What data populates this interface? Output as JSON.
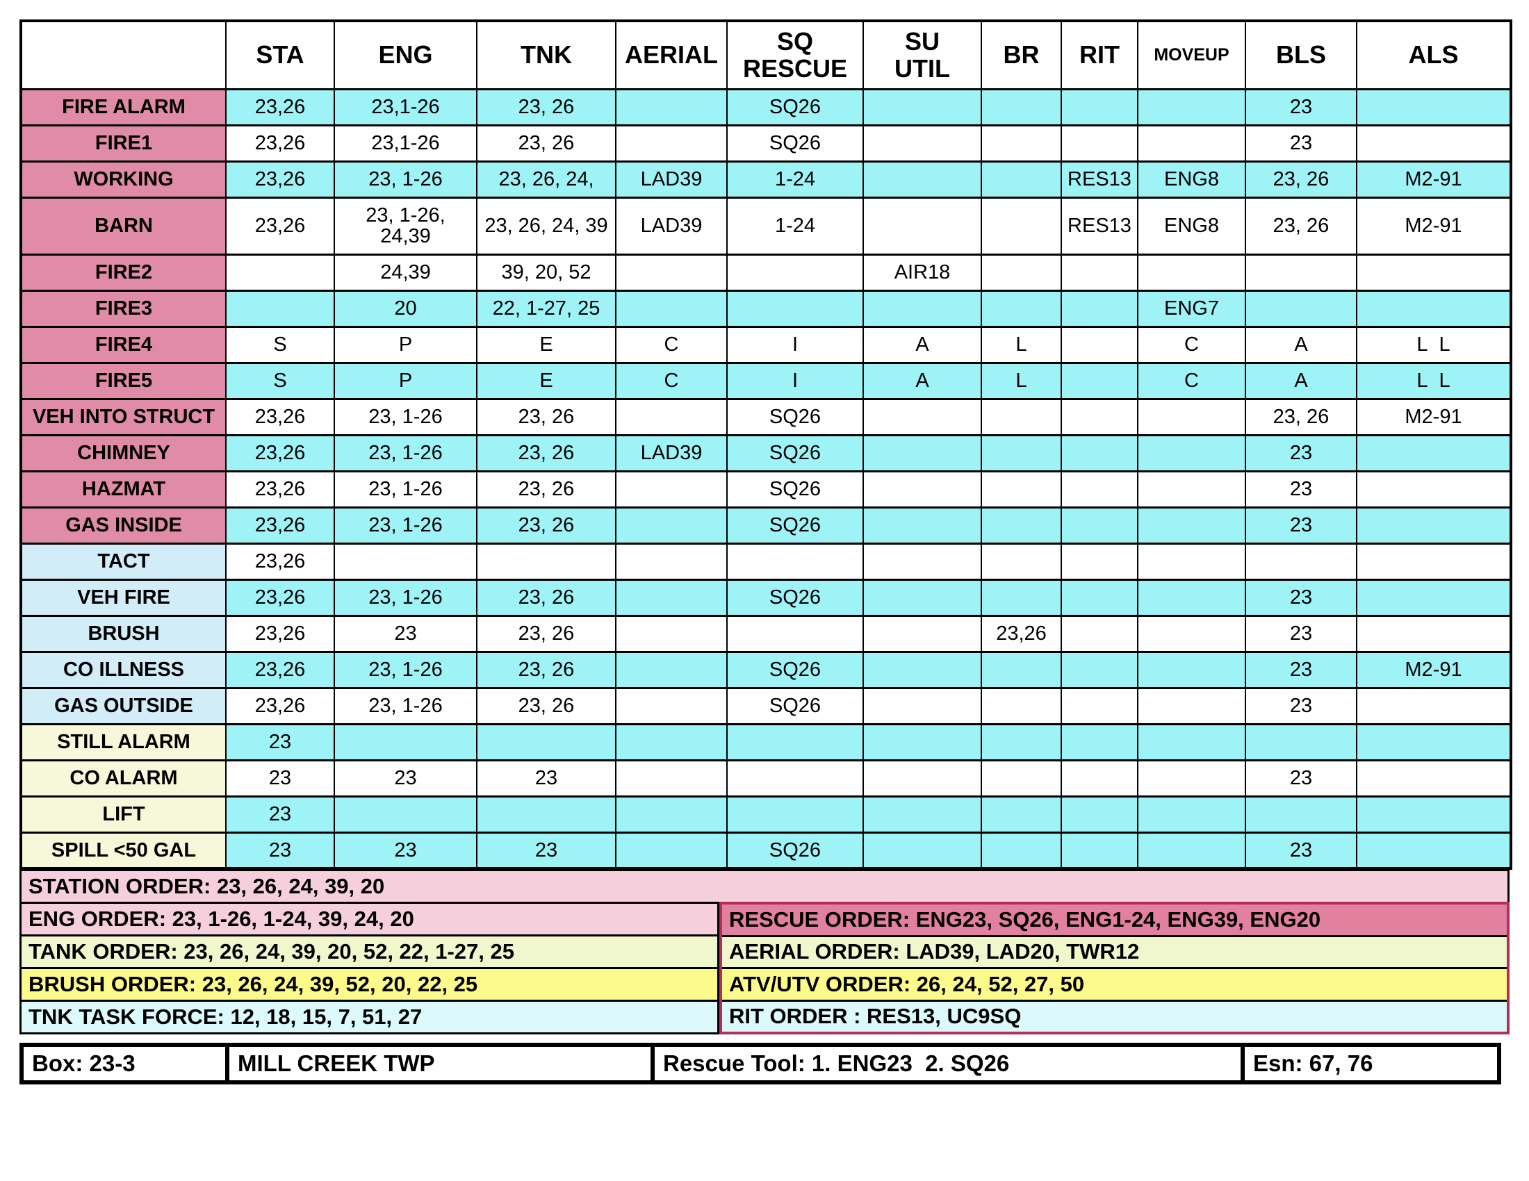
{
  "palette": {
    "cyan": "#9ef3f6",
    "label_pink": "#e08ca8",
    "label_blue": "#d2edf7",
    "label_cream": "#f7f7da",
    "order_pink": "#f5d0dc",
    "order_rose": "#e2809f",
    "order_green": "#f0f7cc",
    "order_yellow": "#fdfa8c",
    "order_cyan": "#dcf9fc",
    "crimson": "#b03058"
  },
  "columns": [
    {
      "id": "row-label",
      "label": ""
    },
    {
      "id": "sta",
      "label": "STA"
    },
    {
      "id": "eng",
      "label": "ENG"
    },
    {
      "id": "tnk",
      "label": "TNK"
    },
    {
      "id": "aerial",
      "label": "AERIAL"
    },
    {
      "id": "sq-rescue",
      "label": "SQ\nRESCUE"
    },
    {
      "id": "su-util",
      "label": "SU\nUTIL"
    },
    {
      "id": "br",
      "label": "BR"
    },
    {
      "id": "rit",
      "label": "RIT"
    },
    {
      "id": "moveup",
      "label": "MOVEUP",
      "small": true
    },
    {
      "id": "bls",
      "label": "BLS"
    },
    {
      "id": "als",
      "label": "ALS"
    }
  ],
  "rows": [
    {
      "label": "FIRE ALARM",
      "label_bg": "pink",
      "shade": "cyan",
      "cells": [
        "23,26",
        "23,1-26",
        "23, 26",
        "",
        "SQ26",
        "",
        "",
        "",
        "",
        "23",
        ""
      ]
    },
    {
      "label": "FIRE1",
      "label_bg": "pink",
      "shade": "white",
      "cells": [
        "23,26",
        "23,1-26",
        "23, 26",
        "",
        "SQ26",
        "",
        "",
        "",
        "",
        "23",
        ""
      ]
    },
    {
      "label": "WORKING",
      "label_bg": "pink",
      "shade": "cyan",
      "cells": [
        "23,26",
        "23, 1-26",
        "23, 26, 24,",
        "LAD39",
        "1-24",
        "",
        "",
        "RES13",
        "ENG8",
        "23, 26",
        "M2-91"
      ]
    },
    {
      "label": "BARN",
      "label_bg": "pink",
      "shade": "white",
      "tall": true,
      "cells": [
        "23,26",
        "23, 1-26,\n24,39",
        "23, 26, 24, 39",
        "LAD39",
        "1-24",
        "",
        "",
        "RES13",
        "ENG8",
        "23, 26",
        "M2-91"
      ]
    },
    {
      "label": "FIRE2",
      "label_bg": "pink",
      "shade": "white",
      "cells": [
        "",
        "24,39",
        "39, 20, 52",
        "",
        "",
        "AIR18",
        "",
        "",
        "",
        "",
        ""
      ]
    },
    {
      "label": "FIRE3",
      "label_bg": "pink",
      "shade": "cyan",
      "cells": [
        "",
        "20",
        "22, 1-27, 25",
        "",
        "",
        "",
        "",
        "",
        "ENG7",
        "",
        ""
      ]
    },
    {
      "label": "FIRE4",
      "label_bg": "pink",
      "shade": "white",
      "cells": [
        "S",
        "P",
        "E",
        "C",
        "I",
        "A",
        "L",
        "",
        "C",
        "A",
        "L  L"
      ]
    },
    {
      "label": "FIRE5",
      "label_bg": "pink",
      "shade": "cyan",
      "cells": [
        "S",
        "P",
        "E",
        "C",
        "I",
        "A",
        "L",
        "",
        "C",
        "A",
        "L  L"
      ]
    },
    {
      "label": "VEH INTO STRUCT",
      "label_bg": "pink",
      "shade": "white",
      "cells": [
        "23,26",
        "23, 1-26",
        "23, 26",
        "",
        "SQ26",
        "",
        "",
        "",
        "",
        "23, 26",
        "M2-91"
      ]
    },
    {
      "label": "CHIMNEY",
      "label_bg": "pink",
      "shade": "cyan",
      "cells": [
        "23,26",
        "23, 1-26",
        "23, 26",
        "LAD39",
        "SQ26",
        "",
        "",
        "",
        "",
        "23",
        ""
      ]
    },
    {
      "label": "HAZMAT",
      "label_bg": "pink",
      "shade": "white",
      "cells": [
        "23,26",
        "23, 1-26",
        "23, 26",
        "",
        "SQ26",
        "",
        "",
        "",
        "",
        "23",
        ""
      ]
    },
    {
      "label": "GAS INSIDE",
      "label_bg": "pink",
      "shade": "cyan",
      "cells": [
        "23,26",
        "23, 1-26",
        "23, 26",
        "",
        "SQ26",
        "",
        "",
        "",
        "",
        "23",
        ""
      ]
    },
    {
      "label": "TACT",
      "label_bg": "blue",
      "shade": "white",
      "cells": [
        "23,26",
        "",
        "",
        "",
        "",
        "",
        "",
        "",
        "",
        "",
        ""
      ]
    },
    {
      "label": "VEH FIRE",
      "label_bg": "blue",
      "shade": "cyan",
      "cells": [
        "23,26",
        "23, 1-26",
        "23, 26",
        "",
        "SQ26",
        "",
        "",
        "",
        "",
        "23",
        ""
      ]
    },
    {
      "label": "BRUSH",
      "label_bg": "blue",
      "shade": "white",
      "cells": [
        "23,26",
        "23",
        "23, 26",
        "",
        "",
        "",
        "23,26",
        "",
        "",
        "23",
        ""
      ]
    },
    {
      "label": "CO ILLNESS",
      "label_bg": "blue",
      "shade": "cyan",
      "cells": [
        "23,26",
        "23, 1-26",
        "23, 26",
        "",
        "SQ26",
        "",
        "",
        "",
        "",
        "23",
        "M2-91"
      ]
    },
    {
      "label": "GAS OUTSIDE",
      "label_bg": "blue",
      "shade": "white",
      "cells": [
        "23,26",
        "23, 1-26",
        "23, 26",
        "",
        "SQ26",
        "",
        "",
        "",
        "",
        "23",
        ""
      ]
    },
    {
      "label": "STILL ALARM",
      "label_bg": "cream",
      "shade": "cyan",
      "cells": [
        "23",
        "",
        "",
        "",
        "",
        "",
        "",
        "",
        "",
        "",
        ""
      ]
    },
    {
      "label": "CO ALARM",
      "label_bg": "cream",
      "shade": "white",
      "cells": [
        "23",
        "23",
        "23",
        "",
        "",
        "",
        "",
        "",
        "",
        "23",
        ""
      ]
    },
    {
      "label": "LIFT",
      "label_bg": "cream",
      "shade": "cyan",
      "cells": [
        "23",
        "",
        "",
        "",
        "",
        "",
        "",
        "",
        "",
        "",
        ""
      ]
    },
    {
      "label": "SPILL <50 GAL",
      "label_bg": "cream",
      "shade": "cyan",
      "cells": [
        "23",
        "23",
        "23",
        "",
        "SQ26",
        "",
        "",
        "",
        "",
        "23",
        ""
      ]
    }
  ],
  "orders": {
    "station": "STATION ORDER: 23, 26, 24, 39, 20",
    "left": [
      {
        "text": "ENG ORDER: 23, 1-26, 1-24, 39, 24, 20",
        "bg": "pink"
      },
      {
        "text": "TANK ORDER: 23, 26, 24, 39, 20, 52, 22, 1-27, 25",
        "bg": "green"
      },
      {
        "text": "BRUSH ORDER: 23, 26, 24, 39, 52, 20, 22, 25",
        "bg": "yellow"
      },
      {
        "text": "TNK TASK FORCE: 12, 18, 15, 7, 51, 27",
        "bg": "cyan"
      }
    ],
    "right": [
      {
        "text": "RESCUE ORDER: ENG23, SQ26, ENG1-24, ENG39, ENG20",
        "bg": "rose"
      },
      {
        "text": "AERIAL ORDER: LAD39, LAD20, TWR12",
        "bg": "green"
      },
      {
        "text": "ATV/UTV ORDER: 26, 24, 52, 27, 50",
        "bg": "yellow"
      },
      {
        "text": "RIT ORDER : RES13, UC9SQ",
        "bg": "cyan"
      }
    ]
  },
  "bottom_bar": {
    "box": "Box: 23-3",
    "township": "MILL CREEK TWP",
    "rescue_tool": "Rescue Tool: 1. ENG23  2. SQ26",
    "esn": "Esn: 67, 76"
  }
}
